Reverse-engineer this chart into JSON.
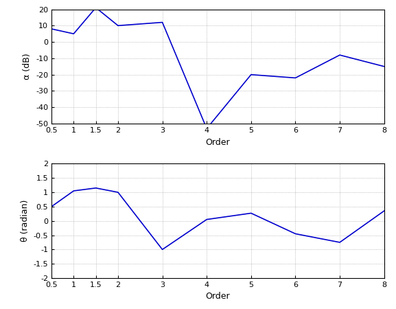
{
  "alpha_x": [
    0.5,
    1,
    1.5,
    2,
    3,
    4,
    5,
    6,
    7,
    8
  ],
  "alpha_y": [
    8,
    5,
    21,
    10,
    12,
    -53,
    -20,
    -22,
    -8,
    -15
  ],
  "theta_x": [
    0.5,
    1,
    1.5,
    2,
    3,
    4,
    5,
    6,
    7,
    8
  ],
  "theta_y": [
    0.5,
    1.05,
    1.15,
    1.0,
    -1.0,
    0.05,
    0.27,
    -0.45,
    -0.75,
    0.35
  ],
  "alpha_ylabel": "α (dB)",
  "theta_ylabel": "θ (radian)",
  "xlabel": "Order",
  "alpha_ylim": [
    -50,
    20
  ],
  "theta_ylim": [
    -2,
    2
  ],
  "xlim": [
    0.5,
    8
  ],
  "xticks": [
    0.5,
    1,
    1.5,
    2,
    3,
    4,
    5,
    6,
    7,
    8
  ],
  "alpha_yticks": [
    -50,
    -40,
    -30,
    -20,
    -10,
    0,
    10,
    20
  ],
  "theta_yticks": [
    -2,
    -1.5,
    -1,
    -0.5,
    0,
    0.5,
    1,
    1.5,
    2
  ],
  "line_color": "#0000cd",
  "line_width": 1.2,
  "background_color": "#ffffff",
  "tick_fontsize": 8,
  "label_fontsize": 9
}
